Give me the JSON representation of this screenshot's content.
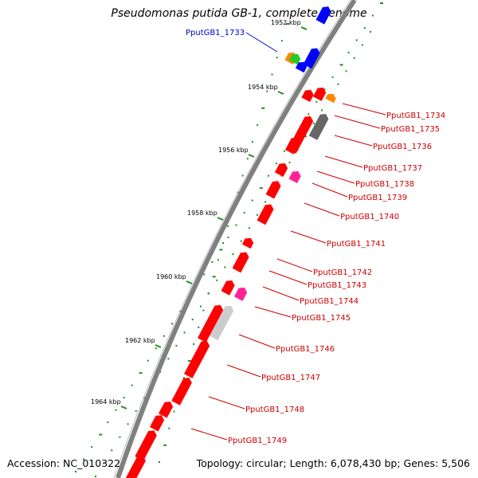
{
  "title": "Pseudomonas putida GB-1, complete genome",
  "accession": "Accession: NC_010322",
  "summary": "Topology: circular; Length: 6,078,430 bp; Genes: 5,506",
  "colors": {
    "backbone": "#808080",
    "gene_red": "#ff0000",
    "gene_blue": "#0000ff",
    "gene_orange": "#ff8800",
    "gene_green": "#22cc22",
    "gene_gray_dark": "#666666",
    "gene_gray_light": "#cccccc",
    "gene_pink": "#ff2299",
    "gc_dots": "#228B22",
    "label_red": "#cc0000",
    "label_blue": "#0000cc"
  },
  "ticks": [
    "1952 kbp",
    "1954 kbp",
    "1956 kbp",
    "1958 kbp",
    "1960 kbp",
    "1962 kbp",
    "1964 kbp"
  ],
  "genes": [
    {
      "label": "PputGB1_1733",
      "color": "blue"
    },
    {
      "label": "PputGB1_1734",
      "color": "red"
    },
    {
      "label": "PputGB1_1735",
      "color": "red"
    },
    {
      "label": "PputGB1_1736",
      "color": "red"
    },
    {
      "label": "PputGB1_1737",
      "color": "red"
    },
    {
      "label": "PputGB1_1738",
      "color": "red"
    },
    {
      "label": "PputGB1_1739",
      "color": "red"
    },
    {
      "label": "PputGB1_1740",
      "color": "red"
    },
    {
      "label": "PputGB1_1741",
      "color": "red"
    },
    {
      "label": "PputGB1_1742",
      "color": "red"
    },
    {
      "label": "PputGB1_1743",
      "color": "red"
    },
    {
      "label": "PputGB1_1744",
      "color": "red"
    },
    {
      "label": "PputGB1_1745",
      "color": "red"
    },
    {
      "label": "PputGB1_1746",
      "color": "red"
    },
    {
      "label": "PputGB1_1747",
      "color": "red"
    },
    {
      "label": "PputGB1_1748",
      "color": "red"
    },
    {
      "label": "PputGB1_1749",
      "color": "red"
    }
  ]
}
